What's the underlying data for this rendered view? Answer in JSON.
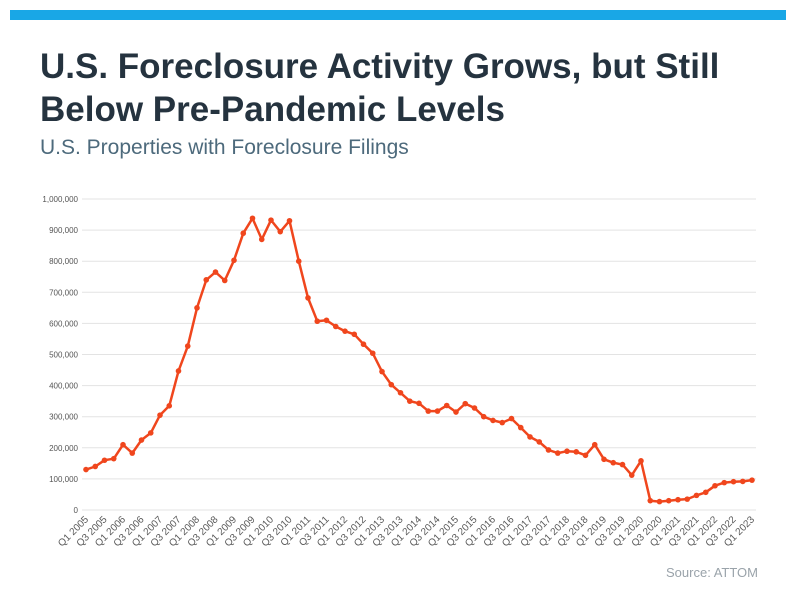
{
  "header": {
    "title": "U.S. Foreclosure Activity Grows, but Still Below Pre-Pandemic Levels",
    "subtitle": "U.S. Properties with Foreclosure Filings"
  },
  "footer": {
    "source": "Source: ATTOM"
  },
  "colors": {
    "accent_bar": "#19a7e6",
    "line": "#f0461d",
    "grid": "#e3e3e3",
    "title": "#25333f",
    "subtitle": "#4d6a7c"
  },
  "chart_data": {
    "type": "line",
    "title": "U.S. Properties with Foreclosure Filings",
    "xlabel": "",
    "ylabel": "",
    "ylim": [
      0,
      1000000
    ],
    "yticks": [
      0,
      100000,
      200000,
      300000,
      400000,
      500000,
      600000,
      700000,
      800000,
      900000,
      1000000
    ],
    "ytick_labels": [
      "0",
      "100,000",
      "200,000",
      "300,000",
      "400,000",
      "500,000",
      "600,000",
      "700,000",
      "800,000",
      "900,000",
      "1,000,000"
    ],
    "grid": true,
    "legend": "none",
    "x_labels": [
      "Q1 2005",
      "Q3 2005",
      "Q1 2006",
      "Q3 2006",
      "Q1 2007",
      "Q3 2007",
      "Q1 2008",
      "Q3 2008",
      "Q1 2009",
      "Q3 2009",
      "Q1 2010",
      "Q3 2010",
      "Q1 2011",
      "Q3 2011",
      "Q1 2012",
      "Q3 2012",
      "Q1 2013",
      "Q3 2013",
      "Q1 2014",
      "Q3 2014",
      "Q1 2015",
      "Q3 2015",
      "Q1 2016",
      "Q3 2016",
      "Q1 2017",
      "Q3 2017",
      "Q1 2018",
      "Q3 2018",
      "Q1 2019",
      "Q3 2019",
      "Q1 2020",
      "Q3 2020",
      "Q1 2021",
      "Q3 2021",
      "Q1 2022",
      "Q3 2022",
      "Q1 2023"
    ],
    "x": [
      "Q1 2005",
      "Q2 2005",
      "Q3 2005",
      "Q4 2005",
      "Q1 2006",
      "Q2 2006",
      "Q3 2006",
      "Q4 2006",
      "Q1 2007",
      "Q2 2007",
      "Q3 2007",
      "Q4 2007",
      "Q1 2008",
      "Q2 2008",
      "Q3 2008",
      "Q4 2008",
      "Q1 2009",
      "Q2 2009",
      "Q3 2009",
      "Q4 2009",
      "Q1 2010",
      "Q2 2010",
      "Q3 2010",
      "Q4 2010",
      "Q1 2011",
      "Q2 2011",
      "Q3 2011",
      "Q4 2011",
      "Q1 2012",
      "Q2 2012",
      "Q3 2012",
      "Q4 2012",
      "Q1 2013",
      "Q2 2013",
      "Q3 2013",
      "Q4 2013",
      "Q1 2014",
      "Q2 2014",
      "Q3 2014",
      "Q4 2014",
      "Q1 2015",
      "Q2 2015",
      "Q3 2015",
      "Q4 2015",
      "Q1 2016",
      "Q2 2016",
      "Q3 2016",
      "Q4 2016",
      "Q1 2017",
      "Q2 2017",
      "Q3 2017",
      "Q4 2017",
      "Q1 2018",
      "Q2 2018",
      "Q3 2018",
      "Q4 2018",
      "Q1 2019",
      "Q2 2019",
      "Q3 2019",
      "Q4 2019",
      "Q1 2020",
      "Q2 2020",
      "Q3 2020",
      "Q4 2020",
      "Q1 2021",
      "Q2 2021",
      "Q3 2021",
      "Q4 2021",
      "Q1 2022",
      "Q2 2022",
      "Q3 2022",
      "Q4 2022",
      "Q1 2023"
    ],
    "series": [
      {
        "values": [
          130000,
          140000,
          160000,
          165000,
          210000,
          183000,
          225000,
          248000,
          305000,
          335000,
          447000,
          527000,
          650000,
          740000,
          765000,
          738000,
          803000,
          890000,
          938000,
          870000,
          932000,
          895000,
          930000,
          800000,
          682000,
          607000,
          610000,
          590000,
          575000,
          565000,
          533000,
          504000,
          445000,
          403000,
          377000,
          350000,
          343000,
          318000,
          318000,
          336000,
          315000,
          342000,
          328000,
          300000,
          288000,
          281000,
          294000,
          265000,
          235000,
          219000,
          193000,
          183000,
          189000,
          187000,
          176000,
          210000,
          163000,
          152000,
          146000,
          112000,
          158000,
          30000,
          27000,
          30000,
          33000,
          35000,
          47000,
          57000,
          78000,
          88000,
          91000,
          92000,
          96000
        ]
      }
    ]
  }
}
